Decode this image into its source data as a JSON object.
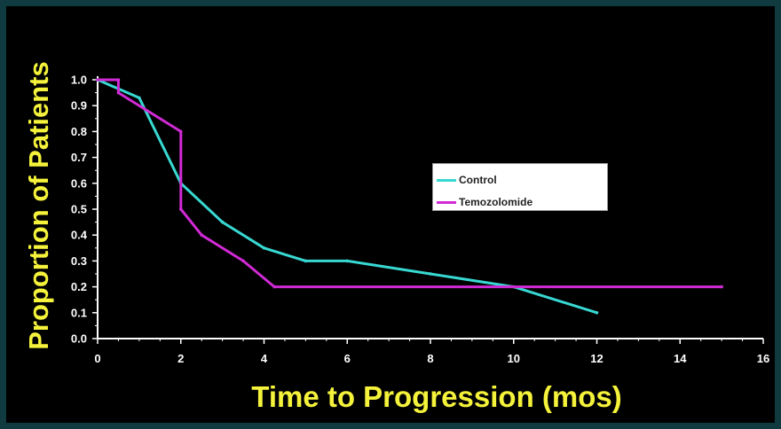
{
  "chart_data": {
    "type": "line",
    "xlabel": "Time to Progression (mos)",
    "ylabel": "Proportion of Patients",
    "xlim": [
      0,
      16
    ],
    "ylim": [
      0,
      1.0
    ],
    "xticks": [
      "0",
      "2",
      "4",
      "6",
      "8",
      "10",
      "12",
      "14",
      "16"
    ],
    "yticks": [
      "0.0",
      "0.1",
      "0.2",
      "0.3",
      "0.4",
      "0.5",
      "0.6",
      "0.7",
      "0.8",
      "0.9",
      "1.0"
    ],
    "grid": false,
    "legend_position": "center-right",
    "series": [
      {
        "name": "Control",
        "color": "#38d8d2",
        "points": [
          [
            0,
            1.0
          ],
          [
            1,
            0.93
          ],
          [
            2,
            0.6
          ],
          [
            3,
            0.45
          ],
          [
            4,
            0.35
          ],
          [
            5,
            0.3
          ],
          [
            6,
            0.3
          ],
          [
            8,
            0.25
          ],
          [
            10,
            0.2
          ],
          [
            12,
            0.1
          ]
        ]
      },
      {
        "name": "Temozolomide",
        "color": "#d02ad4",
        "points": [
          [
            0,
            1.0
          ],
          [
            0.5,
            1.0
          ],
          [
            0.5,
            0.95
          ],
          [
            2,
            0.8
          ],
          [
            2,
            0.5
          ],
          [
            2.5,
            0.4
          ],
          [
            3.5,
            0.3
          ],
          [
            4.25,
            0.2
          ],
          [
            15,
            0.2
          ]
        ]
      }
    ]
  }
}
